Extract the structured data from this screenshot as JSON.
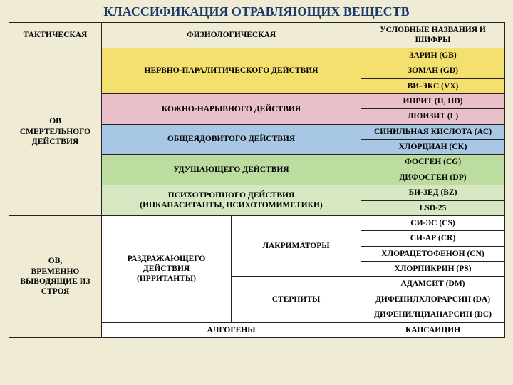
{
  "title": "КЛАССИФИКАЦИЯ ОТРАВЛЯЮЩИХ ВЕЩЕСТВ",
  "colors": {
    "header": "#efebd4",
    "yellow": "#f4e06e",
    "pink": "#e9bfc9",
    "blue": "#a8c7e4",
    "green": "#bcdca0",
    "ltgreen": "#d7e7c1",
    "white": "#ffffff",
    "border": "#222222"
  },
  "header": {
    "tactical": "ТАКТИЧЕСКАЯ",
    "physio": "ФИЗИОЛОГИЧЕСКАЯ",
    "codes": "УСЛОВНЫЕ НАЗВАНИЯ И ШИФРЫ"
  },
  "tac": {
    "lethal": "ОВ\nСМЕРТЕЛЬНОГО ДЕЙСТВИЯ",
    "incap": "ОВ,\nВРЕМЕННО ВЫВОДЯЩИЕ ИЗ СТРОЯ"
  },
  "phys": {
    "nerve": "НЕРВНО-ПАРАЛИТИЧЕСКОГО ДЕЙСТВИЯ",
    "blister": "КОЖНО-НАРЫВНОГО ДЕЙСТВИЯ",
    "blood": "ОБЩЕЯДОВИТОГО ДЕЙСТВИЯ",
    "chok": "УДУШАЮЩЕГО ДЕЙСТВИЯ",
    "psycho": "ПСИХОТРОПНОГО ДЕЙСТВИЯ\n(ИНКАПАСИТАНТЫ, ПСИХОТОМИМЕТИКИ)",
    "irr": "РАЗДРАЖАЮЩЕГО ДЕЙСТВИЯ\n(ИРРИТАНТЫ)",
    "lacr": "ЛАКРИМАТОРЫ",
    "stern": "СТЕРНИТЫ",
    "algo": "АЛГОГЕНЫ"
  },
  "agents": {
    "gb": "ЗАРИН (GB)",
    "gd": "ЗОМАН (GD)",
    "vx": "ВИ-ЭКС (VX)",
    "hd": "ИПРИТ (H, HD)",
    "l": "ЛЮИЗИТ (L)",
    "ac": "СИНИЛЬНАЯ КИСЛОТА (AC)",
    "ck": "ХЛОРЦИАН (CK)",
    "cg": "ФОСГЕН (CG)",
    "dp": "ДИФОСГЕН (DP)",
    "bz": "БИ-ЗЕД (BZ)",
    "lsd": "LSD-25",
    "cs": "СИ-ЭС (CS)",
    "cr": "СИ-АР (CR)",
    "cn": "ХЛОРАЦЕТОФЕНОН (CN)",
    "ps": "ХЛОРПИКРИН (PS)",
    "dm": "АДАМСИТ (DM)",
    "da": "ДИФЕНИЛХЛОРАРСИН (DA)",
    "dc": "ДИФЕНИЛЦИАНАРСИН (DC)",
    "cap": "КАПСАИЦИН"
  }
}
